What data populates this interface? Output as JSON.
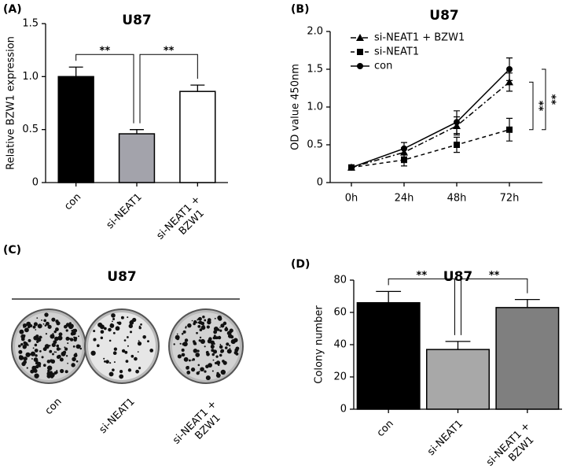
{
  "chart_data": [
    {
      "type": "bar",
      "panel_label": "(A)",
      "title": "U87",
      "ylabel": "Relative BZW1 expression",
      "categories": [
        "con",
        "si-NEAT1",
        "si-NEAT1 + BZW1"
      ],
      "values": [
        1.0,
        0.46,
        0.86
      ],
      "errors": [
        0.09,
        0.04,
        0.06
      ],
      "colors": [
        "#000000",
        "#a3a3ab",
        "#ffffff"
      ],
      "ylim": [
        0,
        1.5
      ],
      "yticks": [
        0,
        0.5,
        {
          "value": 1,
          "label": "1.0"
        },
        1.5
      ],
      "significance": [
        {
          "between": [
            0,
            1
          ],
          "label": "**"
        },
        {
          "between": [
            1,
            2
          ],
          "label": "**"
        }
      ]
    },
    {
      "type": "line",
      "panel_label": "(B)",
      "title": "U87",
      "ylabel": "OD value 450nm",
      "categories": [
        "0h",
        "24h",
        "48h",
        "72h"
      ],
      "series": [
        {
          "name": "si-NEAT1 + BZW1",
          "color": "#000000",
          "style": "dash-dot",
          "marker": "triangle",
          "values": [
            0.2,
            0.4,
            0.75,
            1.33
          ],
          "errors": [
            0.03,
            0.06,
            0.12,
            0.12
          ]
        },
        {
          "name": "si-NEAT1",
          "color": "#000000",
          "style": "dashed",
          "marker": "square",
          "values": [
            0.2,
            0.3,
            0.5,
            0.7
          ],
          "errors": [
            0.03,
            0.08,
            0.1,
            0.15
          ]
        },
        {
          "name": "con",
          "color": "#000000",
          "style": "solid",
          "marker": "circle",
          "values": [
            0.2,
            0.45,
            0.8,
            1.5
          ],
          "errors": [
            0.03,
            0.08,
            0.15,
            0.15
          ]
        }
      ],
      "ylim": [
        0,
        2
      ],
      "yticks": [
        0,
        0.5,
        {
          "value": 1,
          "label": "1.0"
        },
        1.5,
        {
          "value": 2,
          "label": "2.0"
        }
      ],
      "legend": "upper left",
      "significance": [
        {
          "between": [
            0,
            1
          ],
          "label": "**"
        },
        {
          "between": [
            2,
            1
          ],
          "label": "**"
        }
      ]
    },
    {
      "type": "bar",
      "panel_label": "(D)",
      "title": "U87",
      "ylabel": "Colony number",
      "categories": [
        "con",
        "si-NEAT1",
        "si-NEAT1 + BZW1"
      ],
      "values": [
        66,
        37,
        63
      ],
      "errors": [
        7,
        5,
        5
      ],
      "colors": [
        "#000000",
        "#a8a8a8",
        "#7f7f7f"
      ],
      "ylim": [
        0,
        80
      ],
      "yticks": [
        0,
        20,
        40,
        60,
        80
      ],
      "significance": [
        {
          "between": [
            0,
            1
          ],
          "label": "**"
        },
        {
          "between": [
            1,
            2
          ],
          "label": "**"
        }
      ]
    }
  ],
  "panel_c": {
    "panel_label": "(C)",
    "title": "U87",
    "categories": [
      "con",
      "si-NEAT1",
      "si-NEAT1 + BZW1"
    ]
  }
}
